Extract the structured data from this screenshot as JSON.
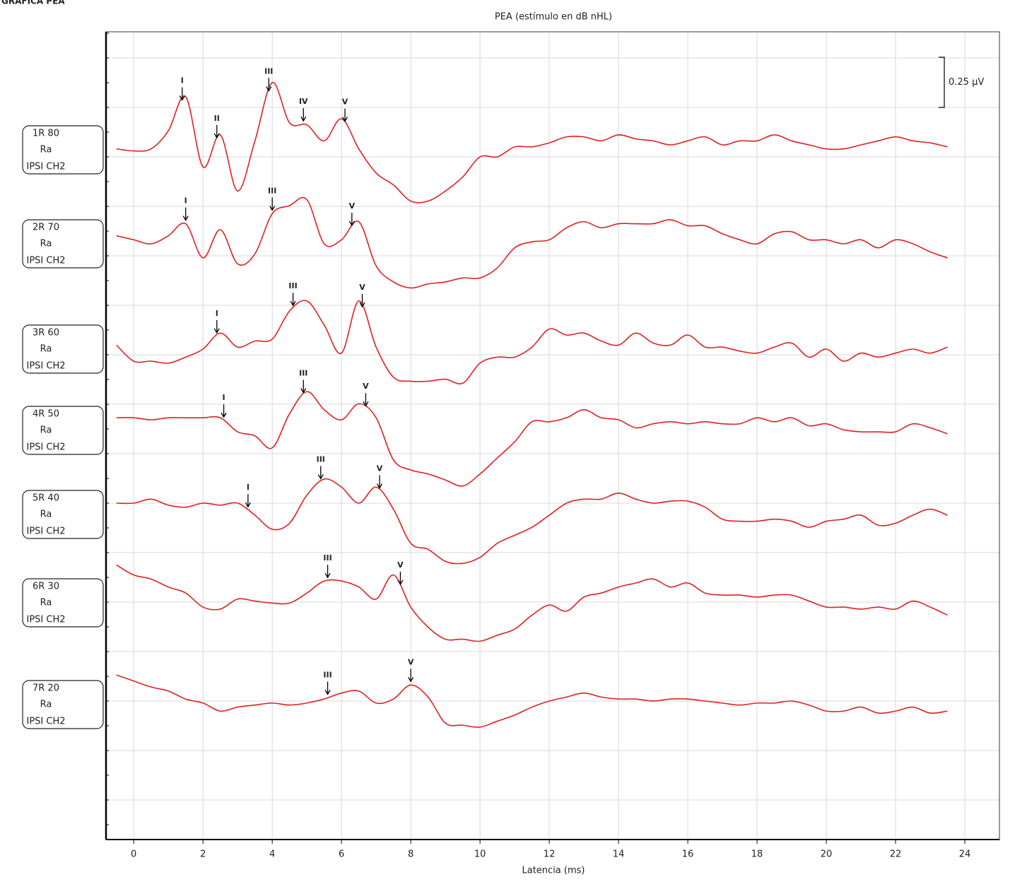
{
  "header": "GRÁFICA PEA",
  "chart_data": {
    "type": "line",
    "title": "PEA (estímulo en dB nHL)",
    "xlabel": "Latencia (ms)",
    "xlim": [
      -0.8,
      25
    ],
    "xticks": [
      0,
      2,
      4,
      6,
      8,
      10,
      12,
      14,
      16,
      18,
      20,
      22,
      24
    ],
    "grid": true,
    "scale_bar": {
      "value": 0.25,
      "label": "0.25 µV"
    },
    "x": [
      -0.5,
      0,
      0.5,
      1,
      1.5,
      2,
      2.5,
      3,
      3.5,
      4,
      4.5,
      5,
      5.5,
      6,
      6.5,
      7,
      7.5,
      8,
      8.5,
      9,
      9.5,
      10,
      10.5,
      11,
      11.5,
      12,
      12.5,
      13,
      13.5,
      14,
      14.5,
      15,
      15.5,
      16,
      16.5,
      17,
      17.5,
      18,
      18.5,
      19,
      19.5,
      20,
      20.5,
      21,
      21.5,
      22,
      22.5,
      23,
      23.5
    ],
    "series": [
      {
        "name": "1R 80",
        "side": "Ra",
        "channel": "IPSI CH2",
        "color": "#e02020",
        "values": [
          -0.02,
          -0.03,
          -0.02,
          0.07,
          0.24,
          -0.11,
          0.05,
          -0.23,
          0.02,
          0.31,
          0.11,
          0.1,
          0.02,
          0.13,
          -0.02,
          -0.14,
          -0.2,
          -0.28,
          -0.28,
          -0.23,
          -0.16,
          -0.06,
          -0.06,
          -0.01,
          -0.01,
          0.01,
          0.04,
          0.04,
          0.02,
          0.05,
          0.03,
          0.02,
          0,
          0.02,
          0.04,
          0,
          0.02,
          0.02,
          0.05,
          0.02,
          0,
          -0.02,
          -0.02,
          0,
          0.02,
          0.04,
          0.02,
          0.01,
          -0.01
        ],
        "peaks": [
          {
            "label": "I",
            "x": 1.4
          },
          {
            "label": "II",
            "x": 2.4
          },
          {
            "label": "III",
            "x": 3.9
          },
          {
            "label": "IV",
            "x": 4.9
          },
          {
            "label": "V",
            "x": 6.1
          }
        ]
      },
      {
        "name": "2R 70",
        "side": "Ra",
        "channel": "IPSI CH2",
        "color": "#e02020",
        "values": [
          0.04,
          0.02,
          0,
          0.04,
          0.1,
          -0.07,
          0.07,
          -0.1,
          -0.05,
          0.15,
          0.19,
          0.22,
          0,
          0.02,
          0.11,
          -0.11,
          -0.19,
          -0.22,
          -0.2,
          -0.19,
          -0.17,
          -0.17,
          -0.12,
          -0.02,
          0.01,
          0.02,
          0.08,
          0.11,
          0.08,
          0.1,
          0.1,
          0.1,
          0.12,
          0.09,
          0.09,
          0.05,
          0.02,
          0,
          0.05,
          0.06,
          0.02,
          0.02,
          0,
          0.02,
          -0.02,
          0.02,
          0,
          -0.04,
          -0.07
        ],
        "peaks": [
          {
            "label": "I",
            "x": 1.5
          },
          {
            "label": "III",
            "x": 4.0
          },
          {
            "label": "V",
            "x": 6.3
          }
        ]
      },
      {
        "name": "3R 60",
        "side": "Ra",
        "channel": "IPSI CH2",
        "color": "#e02020",
        "values": [
          0.02,
          -0.06,
          -0.06,
          -0.07,
          -0.04,
          0,
          0.08,
          0.01,
          0.04,
          0.05,
          0.19,
          0.24,
          0.12,
          -0.02,
          0.24,
          0.01,
          -0.14,
          -0.16,
          -0.16,
          -0.15,
          -0.17,
          -0.07,
          -0.04,
          -0.04,
          0.01,
          0.1,
          0.07,
          0.08,
          0.04,
          0.02,
          0.08,
          0.03,
          0.02,
          0.07,
          0.01,
          0.01,
          -0.01,
          -0.02,
          0.01,
          0.03,
          -0.04,
          0,
          -0.06,
          -0.02,
          -0.04,
          -0.02,
          0,
          -0.02,
          0.01
        ],
        "peaks": [
          {
            "label": "I",
            "x": 2.4
          },
          {
            "label": "III",
            "x": 4.6
          },
          {
            "label": "V",
            "x": 6.6
          }
        ]
      },
      {
        "name": "4R 50",
        "side": "Ra",
        "channel": "IPSI CH2",
        "color": "#e02020",
        "values": [
          0.01,
          0.01,
          0,
          0.01,
          0.01,
          0.01,
          0.01,
          -0.06,
          -0.08,
          -0.14,
          0.03,
          0.14,
          0.05,
          0,
          0.08,
          0.01,
          -0.2,
          -0.25,
          -0.27,
          -0.3,
          -0.33,
          -0.27,
          -0.19,
          -0.11,
          -0.01,
          -0.01,
          0.01,
          0.05,
          0.01,
          0,
          -0.04,
          -0.02,
          -0.01,
          -0.02,
          -0.01,
          -0.02,
          -0.02,
          0.01,
          -0.01,
          0.01,
          -0.03,
          -0.02,
          -0.05,
          -0.06,
          -0.06,
          -0.06,
          -0.02,
          -0.04,
          -0.07
        ],
        "peaks": [
          {
            "label": "I",
            "x": 2.6
          },
          {
            "label": "III",
            "x": 4.9
          },
          {
            "label": "V",
            "x": 6.7
          }
        ]
      },
      {
        "name": "5R 40",
        "side": "Ra",
        "channel": "IPSI CH2",
        "color": "#e02020",
        "values": [
          0,
          0,
          0.02,
          -0.01,
          -0.02,
          0,
          -0.01,
          0,
          -0.06,
          -0.13,
          -0.1,
          0.04,
          0.12,
          0.08,
          0,
          0.08,
          -0.03,
          -0.2,
          -0.23,
          -0.29,
          -0.3,
          -0.27,
          -0.2,
          -0.16,
          -0.12,
          -0.06,
          0,
          0.02,
          0.02,
          0.05,
          0.02,
          0,
          0.01,
          0.01,
          -0.02,
          -0.08,
          -0.09,
          -0.09,
          -0.08,
          -0.09,
          -0.12,
          -0.09,
          -0.08,
          -0.06,
          -0.11,
          -0.1,
          -0.06,
          -0.03,
          -0.06
        ],
        "peaks": [
          {
            "label": "I",
            "x": 3.3
          },
          {
            "label": "III",
            "x": 5.4
          },
          {
            "label": "V",
            "x": 7.1
          }
        ]
      },
      {
        "name": "6R 30",
        "side": "Ra",
        "channel": "IPSI CH2",
        "color": "#e02020",
        "values": [
          0.09,
          0.04,
          0.02,
          -0.02,
          -0.05,
          -0.12,
          -0.13,
          -0.08,
          -0.09,
          -0.1,
          -0.1,
          -0.05,
          0.01,
          0.01,
          -0.02,
          -0.08,
          0.04,
          -0.12,
          -0.22,
          -0.28,
          -0.28,
          -0.29,
          -0.26,
          -0.23,
          -0.16,
          -0.11,
          -0.14,
          -0.07,
          -0.05,
          -0.02,
          0,
          0.02,
          -0.02,
          0,
          -0.05,
          -0.06,
          -0.06,
          -0.07,
          -0.06,
          -0.06,
          -0.09,
          -0.12,
          -0.12,
          -0.13,
          -0.12,
          -0.13,
          -0.09,
          -0.12,
          -0.16
        ],
        "peaks": [
          {
            "label": "III",
            "x": 5.6
          },
          {
            "label": "V",
            "x": 7.7
          }
        ]
      },
      {
        "name": "7R 20",
        "side": "Ra",
        "channel": "IPSI CH2",
        "color": "#e02020",
        "values": [
          0.07,
          0.04,
          0.01,
          -0.01,
          -0.05,
          -0.07,
          -0.11,
          -0.09,
          -0.08,
          -0.07,
          -0.08,
          -0.07,
          -0.05,
          -0.02,
          -0.01,
          -0.07,
          -0.05,
          0.02,
          -0.04,
          -0.17,
          -0.18,
          -0.19,
          -0.16,
          -0.13,
          -0.09,
          -0.06,
          -0.04,
          -0.02,
          -0.04,
          -0.05,
          -0.05,
          -0.06,
          -0.05,
          -0.05,
          -0.06,
          -0.07,
          -0.08,
          -0.07,
          -0.07,
          -0.06,
          -0.08,
          -0.11,
          -0.11,
          -0.09,
          -0.12,
          -0.11,
          -0.09,
          -0.12,
          -0.11
        ],
        "peaks": [
          {
            "label": "III",
            "x": 5.6
          },
          {
            "label": "V",
            "x": 8.0
          }
        ]
      }
    ]
  }
}
